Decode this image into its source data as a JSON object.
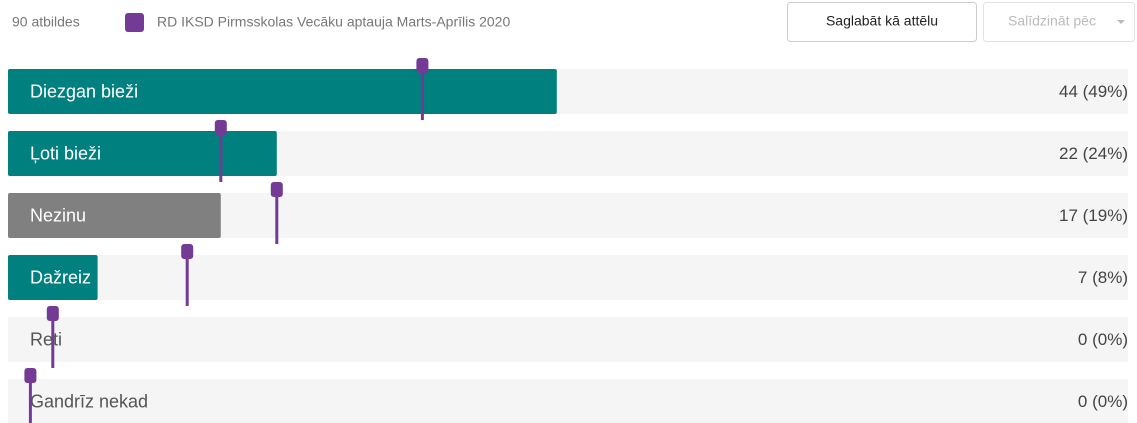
{
  "chart_data": {
    "type": "bar",
    "orientation": "horizontal",
    "total_label": "90 atbildes",
    "buttons": [
      "Saglabāt kā attēlu",
      "Salīdzināt pēc"
    ],
    "categories": [
      "Diezgan bieži",
      "Ļoti bieži",
      "Nezinu",
      "Dažreiz",
      "Reti",
      "Gandrīz nekad"
    ],
    "values": [
      49,
      24,
      19,
      8,
      0,
      0
    ],
    "value_labels": [
      "44 (49%)",
      "22 (24%)",
      "17 (19%)",
      "7 (8%)",
      "0 (0%)",
      "0 (0%)"
    ],
    "colors": [
      "#00807f",
      "#00807f",
      "#808080",
      "#00807f",
      "#00807f",
      "#00807f"
    ],
    "xlim": [
      0,
      100
    ],
    "series": [
      {
        "name": "RD IKSD Pirmsskolas Vecāku aptauja Marts-Aprīlis 2020",
        "color": "#733a96",
        "values": [
          37,
          19,
          24,
          16,
          4,
          2
        ]
      }
    ]
  }
}
